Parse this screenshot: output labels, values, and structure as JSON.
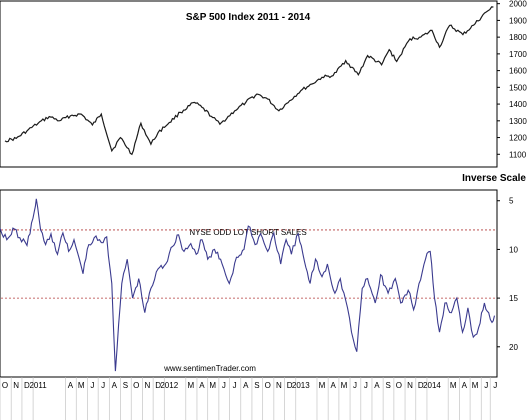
{
  "chart_data": [
    {
      "type": "line",
      "title": "S&P 500 Index 2011 - 2014",
      "y_ticks": [
        "2000",
        "1900",
        "1800",
        "1700",
        "1600",
        "1500",
        "1400",
        "1300",
        "1200",
        "1100"
      ],
      "ylim": [
        1030,
        2010
      ],
      "series": [
        {
          "points": [
            [
              "2010-10-15",
              1180
            ],
            [
              "2010-11-15",
              1195
            ],
            [
              "2010-12-15",
              1240
            ],
            [
              "2011-01-15",
              1285
            ],
            [
              "2011-02-15",
              1325
            ],
            [
              "2011-03-15",
              1300
            ],
            [
              "2011-04-15",
              1330
            ],
            [
              "2011-05-15",
              1340
            ],
            [
              "2011-06-15",
              1275
            ],
            [
              "2011-07-10",
              1340
            ],
            [
              "2011-08-08",
              1120
            ],
            [
              "2011-09-01",
              1200
            ],
            [
              "2011-10-03",
              1100
            ],
            [
              "2011-10-28",
              1285
            ],
            [
              "2011-11-25",
              1160
            ],
            [
              "2011-12-15",
              1230
            ],
            [
              "2012-01-15",
              1290
            ],
            [
              "2012-02-15",
              1350
            ],
            [
              "2012-03-25",
              1410
            ],
            [
              "2012-04-15",
              1380
            ],
            [
              "2012-05-15",
              1320
            ],
            [
              "2012-06-04",
              1280
            ],
            [
              "2012-07-15",
              1360
            ],
            [
              "2012-08-15",
              1410
            ],
            [
              "2012-09-15",
              1460
            ],
            [
              "2012-10-15",
              1430
            ],
            [
              "2012-11-15",
              1360
            ],
            [
              "2012-12-15",
              1420
            ],
            [
              "2013-01-15",
              1480
            ],
            [
              "2013-02-15",
              1520
            ],
            [
              "2013-03-15",
              1560
            ],
            [
              "2013-04-15",
              1570
            ],
            [
              "2013-05-20",
              1660
            ],
            [
              "2013-06-24",
              1575
            ],
            [
              "2013-07-20",
              1690
            ],
            [
              "2013-08-28",
              1635
            ],
            [
              "2013-09-18",
              1725
            ],
            [
              "2013-10-09",
              1655
            ],
            [
              "2013-11-15",
              1790
            ],
            [
              "2013-12-15",
              1800
            ],
            [
              "2014-01-15",
              1840
            ],
            [
              "2014-02-05",
              1740
            ],
            [
              "2014-03-05",
              1870
            ],
            [
              "2014-04-11",
              1815
            ],
            [
              "2014-05-15",
              1880
            ],
            [
              "2014-06-15",
              1950
            ],
            [
              "2014-07-05",
              1980
            ]
          ]
        }
      ]
    },
    {
      "type": "line",
      "title": "NYSE ODD LOT SHORT SALES",
      "scale_label": "Inverse Scale",
      "y_inverted": true,
      "y_ticks": [
        "5",
        "10",
        "15",
        "20"
      ],
      "ylim": [
        4,
        23
      ],
      "reference_lines": [
        8,
        15
      ],
      "series": [
        {
          "points": [
            [
              "2010-10-01",
              7.8
            ],
            [
              "2010-10-20",
              9.0
            ],
            [
              "2010-11-10",
              7.9
            ],
            [
              "2010-11-25",
              8.8
            ],
            [
              "2010-12-15",
              9.6
            ],
            [
              "2011-01-05",
              6.0
            ],
            [
              "2011-01-10",
              4.8
            ],
            [
              "2011-01-22",
              8.0
            ],
            [
              "2011-02-05",
              9.5
            ],
            [
              "2011-02-20",
              8.4
            ],
            [
              "2011-03-10",
              10.5
            ],
            [
              "2011-03-25",
              8.3
            ],
            [
              "2011-04-10",
              10.2
            ],
            [
              "2011-04-25",
              9.0
            ],
            [
              "2011-05-10",
              11.0
            ],
            [
              "2011-05-20",
              12.5
            ],
            [
              "2011-06-05",
              9.5
            ],
            [
              "2011-06-20",
              8.8
            ],
            [
              "2011-07-10",
              9.3
            ],
            [
              "2011-07-25",
              8.7
            ],
            [
              "2011-08-08",
              13.5
            ],
            [
              "2011-08-18",
              22.5
            ],
            [
              "2011-09-05",
              13.5
            ],
            [
              "2011-09-20",
              11.0
            ],
            [
              "2011-10-05",
              15.0
            ],
            [
              "2011-10-22",
              13.0
            ],
            [
              "2011-11-08",
              16.5
            ],
            [
              "2011-11-25",
              14.0
            ],
            [
              "2011-12-15",
              12.0
            ],
            [
              "2012-01-05",
              11.5
            ],
            [
              "2012-01-20",
              9.8
            ],
            [
              "2012-02-10",
              8.5
            ],
            [
              "2012-02-25",
              10.2
            ],
            [
              "2012-03-15",
              9.4
            ],
            [
              "2012-03-30",
              10.5
            ],
            [
              "2012-04-15",
              9.0
            ],
            [
              "2012-05-01",
              11.0
            ],
            [
              "2012-05-20",
              10.0
            ],
            [
              "2012-06-10",
              11.5
            ],
            [
              "2012-06-30",
              13.5
            ],
            [
              "2012-07-20",
              10.8
            ],
            [
              "2012-08-10",
              10.0
            ],
            [
              "2012-08-22",
              7.6
            ],
            [
              "2012-09-10",
              9.5
            ],
            [
              "2012-09-25",
              8.4
            ],
            [
              "2012-10-15",
              10.2
            ],
            [
              "2012-11-01",
              8.3
            ],
            [
              "2012-11-20",
              11.5
            ],
            [
              "2012-12-05",
              9.0
            ],
            [
              "2012-12-20",
              10.5
            ],
            [
              "2013-01-08",
              8.4
            ],
            [
              "2013-01-25",
              11.2
            ],
            [
              "2013-02-10",
              13.5
            ],
            [
              "2013-02-25",
              11.0
            ],
            [
              "2013-03-15",
              12.8
            ],
            [
              "2013-03-30",
              11.5
            ],
            [
              "2013-04-20",
              14.5
            ],
            [
              "2013-05-05",
              13.0
            ],
            [
              "2013-05-25",
              16.0
            ],
            [
              "2013-06-05",
              18.5
            ],
            [
              "2013-06-20",
              20.5
            ],
            [
              "2013-07-05",
              14.0
            ],
            [
              "2013-07-20",
              13.0
            ],
            [
              "2013-08-10",
              15.5
            ],
            [
              "2013-08-25",
              12.6
            ],
            [
              "2013-09-15",
              14.5
            ],
            [
              "2013-10-05",
              13.0
            ],
            [
              "2013-10-20",
              15.5
            ],
            [
              "2013-11-10",
              14.2
            ],
            [
              "2013-11-25",
              16.2
            ],
            [
              "2013-12-10",
              13.5
            ],
            [
              "2013-12-28",
              11.0
            ],
            [
              "2014-01-10",
              10.2
            ],
            [
              "2014-01-22",
              15.0
            ],
            [
              "2014-02-05",
              18.5
            ],
            [
              "2014-02-20",
              15.5
            ],
            [
              "2014-03-10",
              16.5
            ],
            [
              "2014-03-25",
              15.0
            ],
            [
              "2014-04-10",
              18.5
            ],
            [
              "2014-04-25",
              16.0
            ],
            [
              "2014-05-10",
              19.0
            ],
            [
              "2014-05-25",
              18.0
            ],
            [
              "2014-06-10",
              15.5
            ],
            [
              "2014-06-22",
              16.5
            ],
            [
              "2014-07-01",
              17.5
            ],
            [
              "2014-07-08",
              16.8
            ]
          ]
        }
      ]
    }
  ],
  "x_axis": {
    "start": "2010-10-01",
    "end": "2014-07-15",
    "labels": [
      [
        "O",
        "2010-10-15"
      ],
      [
        "N",
        "2010-11-15"
      ],
      [
        "D",
        "2010-12-15"
      ],
      [
        "2011",
        "2011-01-15"
      ],
      [
        "A",
        "2011-04-15"
      ],
      [
        "M",
        "2011-05-15"
      ],
      [
        "J",
        "2011-06-15"
      ],
      [
        "J",
        "2011-07-15"
      ],
      [
        "A",
        "2011-08-15"
      ],
      [
        "S",
        "2011-09-15"
      ],
      [
        "O",
        "2011-10-15"
      ],
      [
        "N",
        "2011-11-15"
      ],
      [
        "D",
        "2011-12-15"
      ],
      [
        "2012",
        "2012-01-15"
      ],
      [
        "M",
        "2012-03-15"
      ],
      [
        "A",
        "2012-04-15"
      ],
      [
        "M",
        "2012-05-15"
      ],
      [
        "J",
        "2012-06-15"
      ],
      [
        "J",
        "2012-07-15"
      ],
      [
        "A",
        "2012-08-15"
      ],
      [
        "S",
        "2012-09-15"
      ],
      [
        "O",
        "2012-10-15"
      ],
      [
        "N",
        "2012-11-15"
      ],
      [
        "D",
        "2012-12-15"
      ],
      [
        "2013",
        "2013-01-15"
      ],
      [
        "M",
        "2013-03-15"
      ],
      [
        "A",
        "2013-04-15"
      ],
      [
        "M",
        "2013-05-15"
      ],
      [
        "J",
        "2013-06-15"
      ],
      [
        "J",
        "2013-07-15"
      ],
      [
        "A",
        "2013-08-15"
      ],
      [
        "S",
        "2013-09-15"
      ],
      [
        "O",
        "2013-10-15"
      ],
      [
        "N",
        "2013-11-15"
      ],
      [
        "D",
        "2013-12-15"
      ],
      [
        "2014",
        "2014-01-15"
      ],
      [
        "M",
        "2014-03-15"
      ],
      [
        "A",
        "2014-04-15"
      ],
      [
        "M",
        "2014-05-15"
      ],
      [
        "J",
        "2014-06-15"
      ],
      [
        "J",
        "2014-07-10"
      ]
    ]
  },
  "watermark": "www.sentimenTrader.com",
  "colors": {
    "top_line": "#1a1a1a",
    "bottom_line": "#3b3b8f",
    "reference_line": "#b23a3a"
  }
}
